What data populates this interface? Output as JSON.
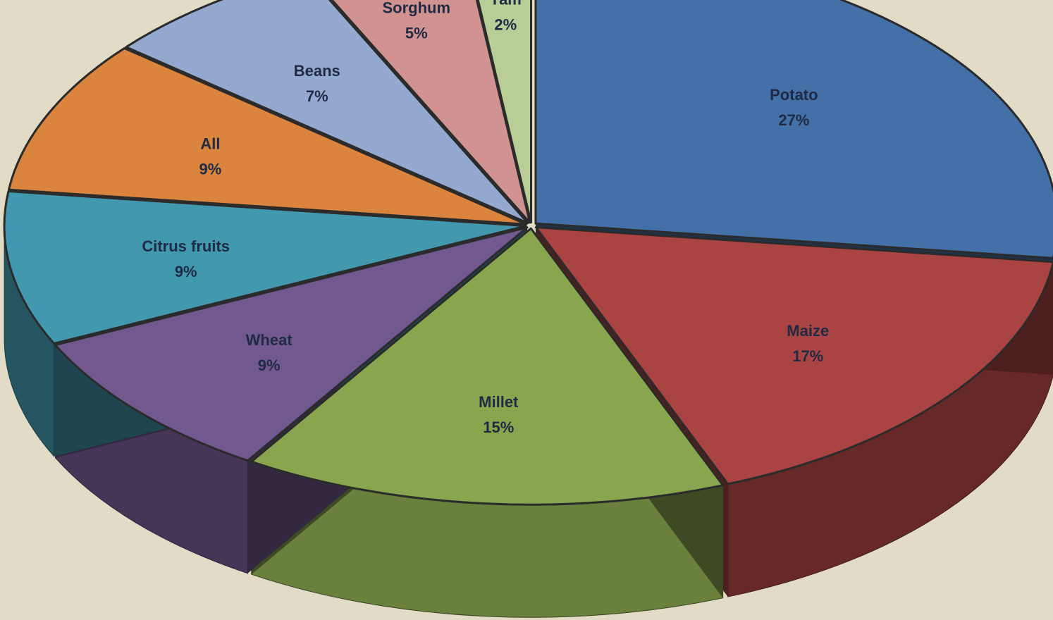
{
  "chart_data": {
    "type": "pie",
    "style": "3d-exploded",
    "title": "",
    "categories": [
      "Potato",
      "Maize",
      "Millet",
      "Wheat",
      "Citrus fruits",
      "All",
      "Beans",
      "Sorghum",
      "Yam"
    ],
    "values": [
      27,
      17,
      15,
      9,
      9,
      9,
      7,
      5,
      2
    ],
    "value_labels": [
      "27%",
      "17%",
      "15%",
      "9%",
      "9%",
      "9%",
      "7%",
      "5%",
      "2%"
    ],
    "colors": [
      "#4470a8",
      "#aa4442",
      "#89a54e",
      "#71588f",
      "#4198af",
      "#db843d",
      "#93a9cf",
      "#d19392",
      "#b9cd96"
    ],
    "start_angle_deg": -90,
    "direction": "clockwise",
    "legend": "none"
  }
}
